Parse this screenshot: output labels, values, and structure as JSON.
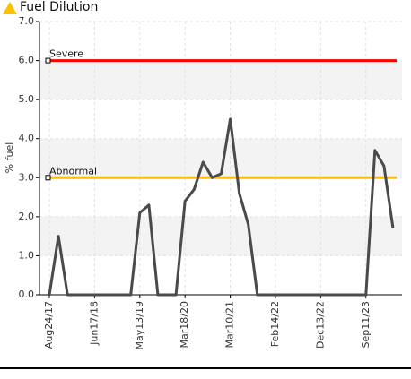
{
  "chart_data": {
    "type": "line",
    "title": "Fuel Dilution",
    "ylabel": "% fuel",
    "xlabel": "",
    "ylim": [
      0,
      7
    ],
    "yticks": [
      "0.0",
      "1.0",
      "2.0",
      "3.0",
      "4.0",
      "5.0",
      "6.0",
      "7.0"
    ],
    "grid": true,
    "x_tick_labels": [
      "Aug24/17",
      "Jun17/18",
      "May13/19",
      "Mar18/20",
      "Mar10/21",
      "Feb14/22",
      "Dec13/22",
      "Sep11/23"
    ],
    "series": [
      {
        "name": "",
        "values": [
          0.0,
          1.5,
          0.0,
          0.0,
          0.0,
          0.0,
          0.0,
          0.0,
          0.0,
          0.0,
          2.1,
          2.3,
          0.0,
          0.0,
          0.0,
          2.4,
          2.7,
          3.4,
          3.0,
          3.1,
          4.5,
          2.6,
          1.8,
          0.0,
          0.0,
          0.0,
          0.0,
          0.0,
          0.0,
          0.0,
          0.0,
          0.0,
          0.0,
          0.0,
          0.0,
          0.0,
          3.7,
          3.3,
          1.7
        ],
        "color": "#4a4a4a"
      }
    ],
    "reference_lines": [
      {
        "label": "Severe",
        "value": 6.0,
        "color": "#ff0000"
      },
      {
        "label": "Abnormal",
        "value": 3.0,
        "color": "#ffc000"
      }
    ],
    "warning_icon_color": "#ffc000"
  }
}
